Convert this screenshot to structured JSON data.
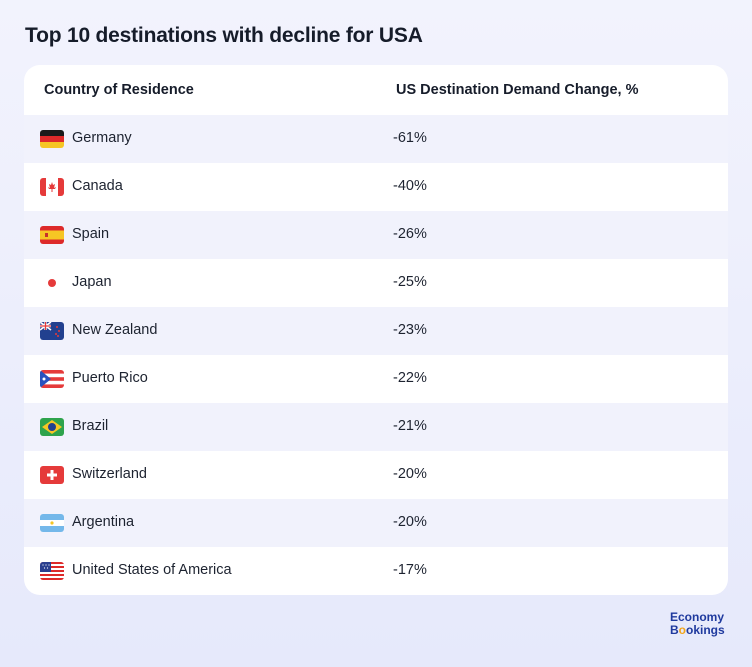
{
  "title": "Top 10 destinations with decline for USA",
  "colors": {
    "alt_row": "#f1f2fc",
    "background": "#eceefc",
    "text": "#1d2330"
  },
  "logo": {
    "line1": "Economy",
    "line2_a": "B",
    "line2_o": "o",
    "line2_b": "okings"
  },
  "chart_data": {
    "type": "table",
    "title": "Top 10 destinations with decline for USA",
    "columns": [
      "Country of Residence",
      "US Destination Demand Change, %"
    ],
    "rows": [
      {
        "country": "Germany",
        "change": "-61%",
        "value": -61,
        "flag": "germany-flag-icon"
      },
      {
        "country": "Canada",
        "change": "-40%",
        "value": -40,
        "flag": "canada-flag-icon"
      },
      {
        "country": "Spain",
        "change": "-26%",
        "value": -26,
        "flag": "spain-flag-icon"
      },
      {
        "country": "Japan",
        "change": "-25%",
        "value": -25,
        "flag": "japan-flag-icon"
      },
      {
        "country": "New Zealand",
        "change": "-23%",
        "value": -23,
        "flag": "new-zealand-flag-icon"
      },
      {
        "country": "Puerto Rico",
        "change": "-22%",
        "value": -22,
        "flag": "puerto-rico-flag-icon"
      },
      {
        "country": "Brazil",
        "change": "-21%",
        "value": -21,
        "flag": "brazil-flag-icon"
      },
      {
        "country": "Switzerland",
        "change": "-20%",
        "value": -20,
        "flag": "switzerland-flag-icon"
      },
      {
        "country": "Argentina",
        "change": "-20%",
        "value": -20,
        "flag": "argentina-flag-icon"
      },
      {
        "country": "United States of America",
        "change": "-17%",
        "value": -17,
        "flag": "usa-flag-icon"
      }
    ]
  }
}
